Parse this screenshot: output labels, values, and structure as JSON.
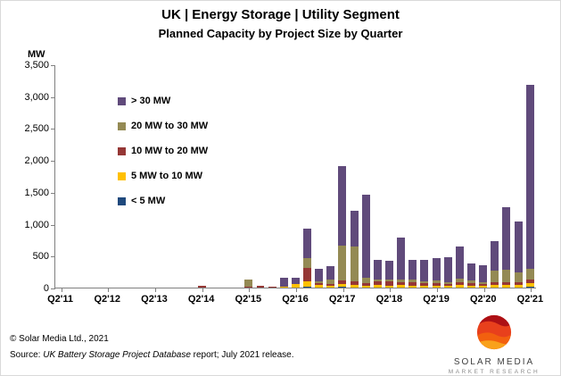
{
  "header": {
    "title": "UK | Energy Storage | Utility Segment",
    "subtitle": "Planned Capacity by Project Size by Quarter"
  },
  "chart_data": {
    "type": "bar",
    "stacked": true,
    "title": "UK | Energy Storage | Utility Segment — Planned Capacity by Project Size by Quarter",
    "unit": "MW",
    "xlabel": "",
    "ylabel": "MW",
    "ylim": [
      0,
      3500
    ],
    "yticks": [
      "3,500",
      "3,000",
      "2,500",
      "2,000",
      "1,500",
      "1,000",
      "500",
      "0"
    ],
    "grid": false,
    "legend_position": "inside-top-left",
    "x_label_every": 4,
    "categories": [
      "Q2'11",
      "Q3'11",
      "Q4'11",
      "Q1'12",
      "Q2'12",
      "Q3'12",
      "Q4'12",
      "Q1'13",
      "Q2'13",
      "Q3'13",
      "Q4'13",
      "Q1'14",
      "Q2'14",
      "Q3'14",
      "Q4'14",
      "Q1'15",
      "Q2'15",
      "Q3'15",
      "Q4'15",
      "Q1'16",
      "Q2'16",
      "Q3'16",
      "Q4'16",
      "Q1'17",
      "Q2'17",
      "Q3'17",
      "Q4'17",
      "Q1'18",
      "Q2'18",
      "Q3'18",
      "Q4'18",
      "Q1'19",
      "Q2'19",
      "Q3'19",
      "Q4'19",
      "Q1'20",
      "Q2'20",
      "Q3'20",
      "Q4'20",
      "Q1'21",
      "Q2'21"
    ],
    "series": [
      {
        "name": "> 30 MW",
        "color": "#604A7B",
        "values": [
          0,
          0,
          0,
          0,
          0,
          0,
          0,
          0,
          0,
          0,
          0,
          0,
          0,
          0,
          0,
          0,
          0,
          0,
          0,
          140,
          100,
          470,
          200,
          210,
          1240,
          550,
          1300,
          300,
          300,
          650,
          320,
          330,
          350,
          380,
          500,
          270,
          260,
          470,
          980,
          800,
          2880
        ]
      },
      {
        "name": "20 MW to 30 MW",
        "color": "#948A54",
        "values": [
          0,
          0,
          0,
          0,
          0,
          0,
          0,
          0,
          0,
          0,
          0,
          0,
          0,
          0,
          0,
          0,
          110,
          0,
          0,
          0,
          0,
          150,
          30,
          60,
          550,
          550,
          80,
          30,
          20,
          40,
          40,
          30,
          40,
          30,
          60,
          40,
          30,
          180,
          200,
          150,
          180
        ]
      },
      {
        "name": "10 MW to 20 MW",
        "color": "#953735",
        "values": [
          0,
          0,
          0,
          0,
          0,
          0,
          0,
          0,
          0,
          0,
          0,
          0,
          35,
          0,
          0,
          0,
          15,
          25,
          15,
          0,
          10,
          210,
          30,
          30,
          50,
          60,
          40,
          60,
          70,
          50,
          50,
          40,
          40,
          30,
          40,
          40,
          30,
          40,
          40,
          50,
          50
        ]
      },
      {
        "name": "5 MW to 10 MW",
        "color": "#FFC000",
        "values": [
          0,
          0,
          0,
          0,
          0,
          0,
          0,
          0,
          0,
          0,
          0,
          0,
          0,
          0,
          0,
          0,
          0,
          0,
          0,
          10,
          50,
          90,
          40,
          30,
          50,
          40,
          30,
          40,
          30,
          40,
          30,
          30,
          30,
          30,
          40,
          30,
          30,
          40,
          40,
          40,
          60
        ]
      },
      {
        "name": "< 5 MW",
        "color": "#1F497D",
        "values": [
          0,
          0,
          0,
          0,
          0,
          0,
          0,
          0,
          0,
          0,
          0,
          0,
          0,
          0,
          0,
          0,
          0,
          0,
          0,
          0,
          0,
          10,
          0,
          0,
          10,
          0,
          0,
          0,
          0,
          0,
          0,
          0,
          0,
          0,
          0,
          0,
          0,
          0,
          0,
          0,
          10
        ]
      }
    ]
  },
  "footer": {
    "copyright": "© Solar Media Ltd., 2021",
    "source_prefix": "Source: ",
    "source_italic": "UK Battery Storage Project Database",
    "source_rest": " report; July 2021 release."
  },
  "logo": {
    "line1": "SOLAR MEDIA",
    "line2": "MARKET RESEARCH"
  }
}
